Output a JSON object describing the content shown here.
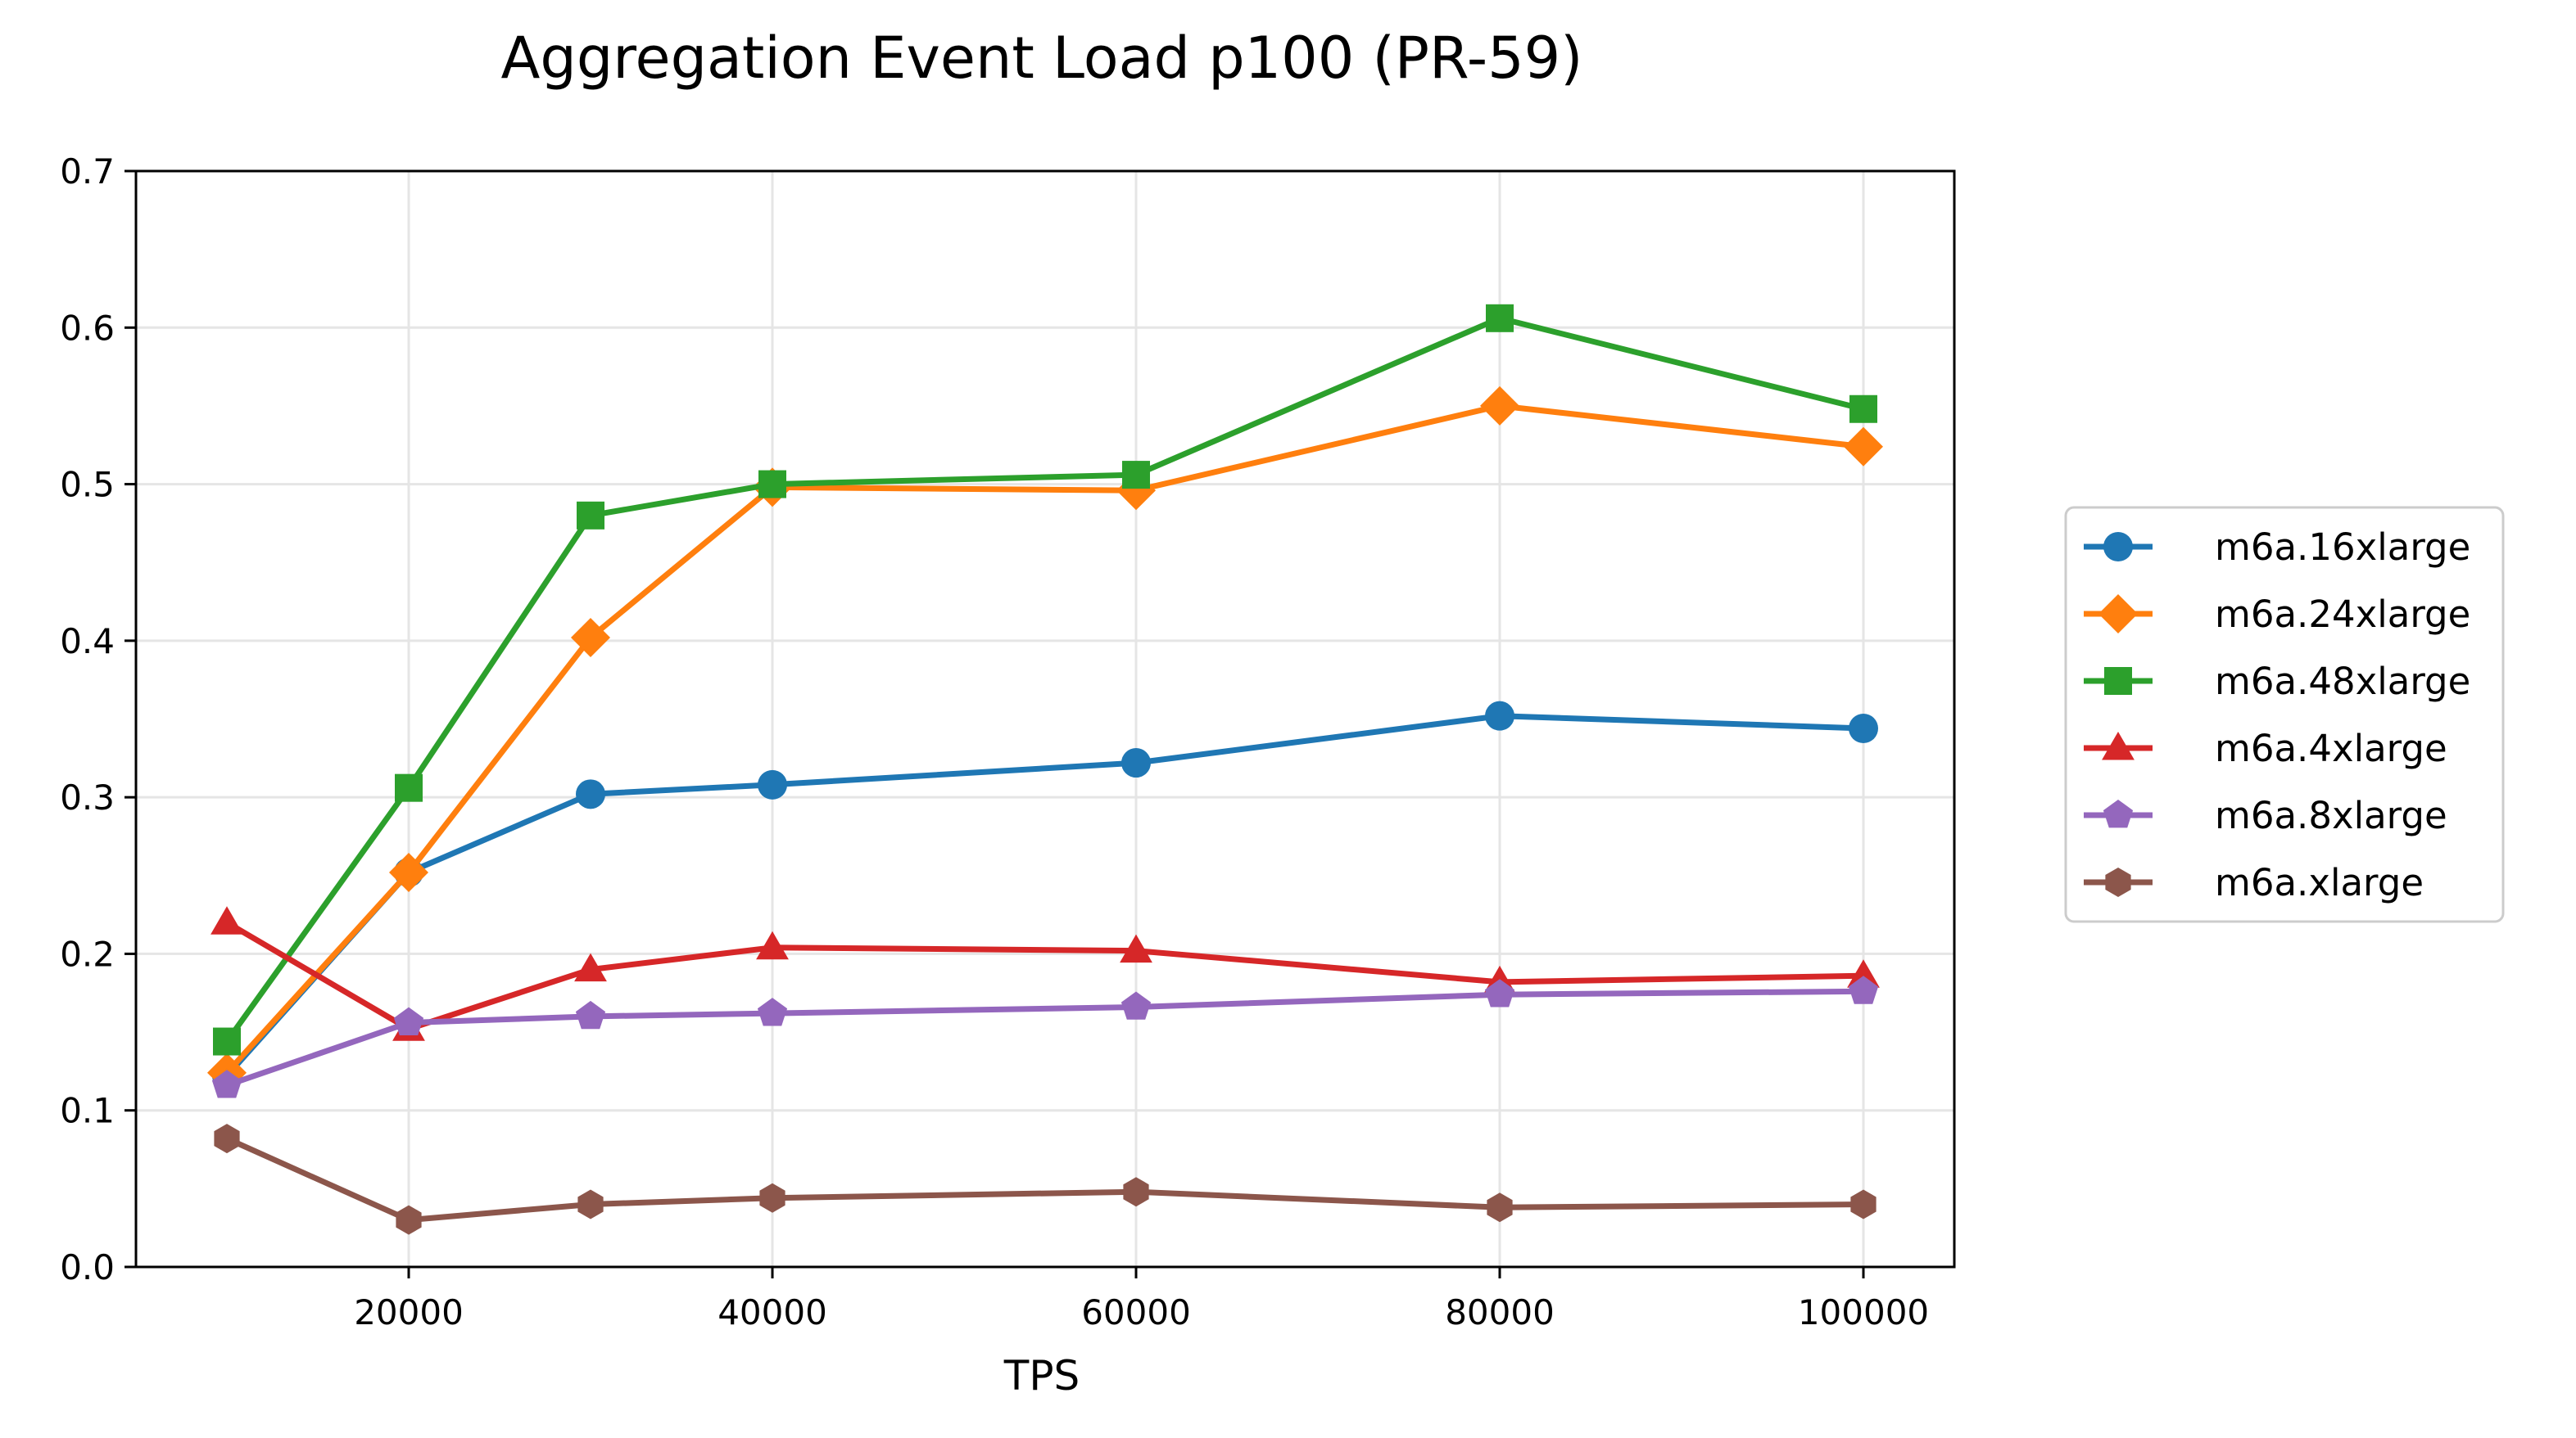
{
  "chart_data": {
    "type": "line",
    "title": "Aggregation Event Load p100 (PR-59)",
    "xlabel": "TPS",
    "ylabel": "",
    "x": [
      10000,
      20000,
      30000,
      40000,
      60000,
      80000,
      100000
    ],
    "xlim": [
      5000,
      105000
    ],
    "ylim": [
      0,
      0.7
    ],
    "xticks": [
      "20000",
      "40000",
      "60000",
      "80000",
      "100000"
    ],
    "yticks": [
      "0.0",
      "0.1",
      "0.2",
      "0.3",
      "0.4",
      "0.5",
      "0.6",
      "0.7"
    ],
    "grid": true,
    "legend_position": "right-outside",
    "series": [
      {
        "name": "m6a.16xlarge",
        "color": "#1f77b4",
        "marker": "circle",
        "values": [
          0.122,
          0.252,
          0.302,
          0.308,
          0.322,
          0.352,
          0.344
        ]
      },
      {
        "name": "m6a.24xlarge",
        "color": "#ff7f0e",
        "marker": "diamond",
        "values": [
          0.124,
          0.252,
          0.402,
          0.498,
          0.496,
          0.55,
          0.524
        ]
      },
      {
        "name": "m6a.48xlarge",
        "color": "#2ca02c",
        "marker": "square",
        "values": [
          0.144,
          0.306,
          0.48,
          0.5,
          0.506,
          0.606,
          0.548
        ]
      },
      {
        "name": "m6a.4xlarge",
        "color": "#d62728",
        "marker": "triangle",
        "values": [
          0.22,
          0.152,
          0.19,
          0.204,
          0.202,
          0.182,
          0.186
        ]
      },
      {
        "name": "m6a.8xlarge",
        "color": "#9467bd",
        "marker": "pentagon",
        "values": [
          0.116,
          0.156,
          0.16,
          0.162,
          0.166,
          0.174,
          0.176
        ]
      },
      {
        "name": "m6a.xlarge",
        "color": "#8c564b",
        "marker": "hexagon",
        "values": [
          0.082,
          0.03,
          0.04,
          0.044,
          0.048,
          0.038,
          0.04
        ]
      }
    ]
  }
}
